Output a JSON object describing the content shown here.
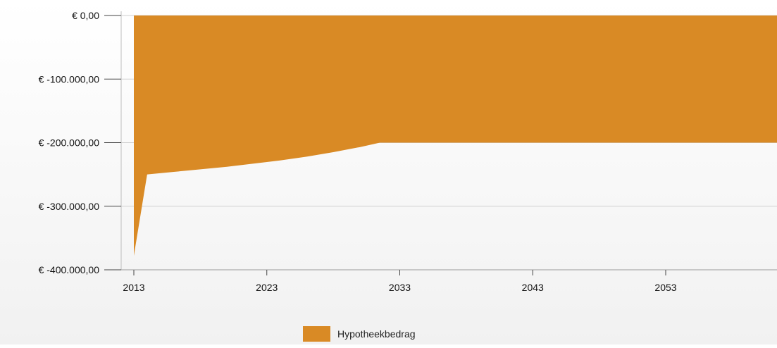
{
  "chart_data": {
    "type": "area",
    "title": "",
    "xlabel": "",
    "ylabel": "",
    "xlim": [
      2013,
      2062
    ],
    "ylim": [
      -400000,
      0
    ],
    "x_ticks": [
      2013,
      2023,
      2033,
      2043,
      2053
    ],
    "x_tick_labels": [
      "2013",
      "2023",
      "2033",
      "2043",
      "2053"
    ],
    "y_ticks": [
      0,
      -100000,
      -200000,
      -300000,
      -400000
    ],
    "y_tick_labels": [
      "€ 0,00",
      "€ -100.000,00",
      "€ -200.000,00",
      "€ -300.000,00",
      "€ -400.000,00"
    ],
    "grid": "horizontal",
    "legend_position": "bottom",
    "series": [
      {
        "name": "Hypotheekbedrag",
        "color": "#d98a25",
        "x": [
          2013,
          2014,
          2016,
          2018,
          2020,
          2022,
          2024,
          2026,
          2028,
          2030,
          2031.5,
          2062
        ],
        "y": [
          -378000,
          -250000,
          -246000,
          -242000,
          -238000,
          -233000,
          -228000,
          -222000,
          -215000,
          -207000,
          -200000,
          -200000
        ]
      }
    ]
  },
  "legend": {
    "label": "Hypotheekbedrag"
  }
}
